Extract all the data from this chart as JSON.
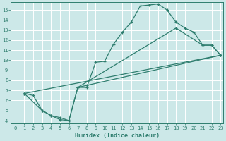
{
  "xlabel": "Humidex (Indice chaleur)",
  "bg_color": "#cce8e8",
  "grid_color": "#ffffff",
  "line_color": "#2e7d6e",
  "xlim": [
    -0.5,
    23.3
  ],
  "ylim": [
    3.7,
    15.8
  ],
  "yticks": [
    4,
    5,
    6,
    7,
    8,
    9,
    10,
    11,
    12,
    13,
    14,
    15
  ],
  "xticks": [
    0,
    1,
    2,
    3,
    4,
    5,
    6,
    7,
    8,
    9,
    10,
    11,
    12,
    13,
    14,
    15,
    16,
    17,
    18,
    19,
    20,
    21,
    22,
    23
  ],
  "line1_x": [
    1,
    2,
    3,
    4,
    5,
    6,
    7,
    8,
    9,
    10,
    11,
    12,
    13,
    14,
    15,
    16,
    17,
    18,
    19,
    20,
    21,
    22,
    23
  ],
  "line1_y": [
    6.7,
    6.5,
    5.0,
    4.5,
    4.1,
    4.0,
    7.3,
    7.3,
    9.8,
    9.9,
    11.6,
    12.8,
    13.8,
    15.4,
    15.5,
    15.6,
    15.0,
    13.8,
    13.2,
    12.8,
    11.5,
    11.5,
    10.5
  ],
  "line2_x": [
    1,
    3,
    4,
    5,
    6,
    7,
    8,
    23
  ],
  "line2_y": [
    6.7,
    5.0,
    4.5,
    4.3,
    4.0,
    7.3,
    7.5,
    10.5
  ],
  "line3_x": [
    1,
    23
  ],
  "line3_y": [
    6.7,
    10.5
  ],
  "line4_x": [
    7,
    18,
    21,
    22,
    23
  ],
  "line4_y": [
    7.3,
    13.2,
    11.5,
    11.5,
    10.5
  ]
}
